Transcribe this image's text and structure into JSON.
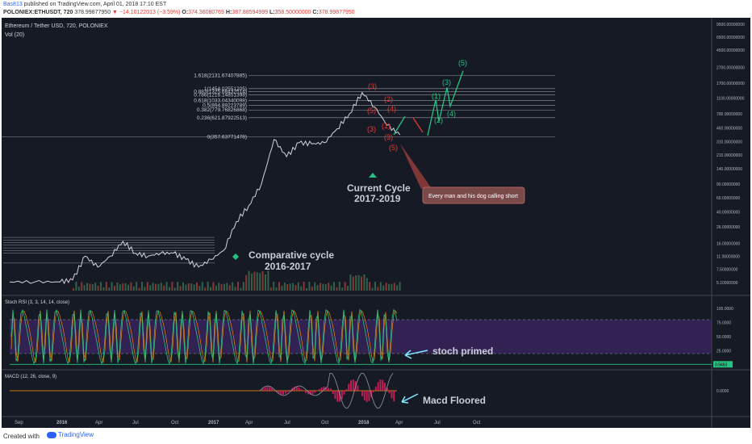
{
  "header": {
    "author": "Bas813",
    "published": "published on TradingView.com, April 01, 2018 17:10 EST",
    "symbol": "POLONIEX:ETHUSDT, 720",
    "last_price": "378.99877950",
    "change": "▼ −14.10122013 (−3.59%)",
    "o_label": "O:",
    "o_value": "374.36080769",
    "h_label": "H:",
    "h_value": "387.88594999",
    "l_label": "L:",
    "l_value": "358.50000000",
    "c_label": "C:",
    "c_value": "378.99877950"
  },
  "footer": {
    "created_with": "Created with",
    "brand": "TradingView"
  },
  "colors": {
    "background": "#161a25",
    "green": "#26c281",
    "red": "#e53935",
    "purple": "#4a2a7a",
    "annotation": "#80e8ff"
  },
  "chart_data": [
    {
      "type": "line",
      "title": "Ethereum / Tether USD, 720, POLONIEX",
      "indicator": "Vol (20)",
      "y_scale": "log",
      "y_ticks": [
        "9500.00000000",
        "6500.00000000",
        "4500.00000000",
        "2700.00000000",
        "1700.00000000",
        "1100.00000000",
        "700.00000000",
        "460.00000000",
        "310.00000000",
        "210.00000000",
        "140.00000000",
        "90.00000000",
        "60.00000000",
        "40.00000000",
        "26.00000000",
        "16.00000000",
        "11.00000000",
        "7.50000000",
        "5.10000000"
      ],
      "fib_levels": [
        {
          "ratio": 1.618,
          "label": "1.618(2131.67407885)",
          "value": 2131.674
        },
        {
          "ratio": 1,
          "label": "1(1454.02551205)",
          "value": 1454.026
        },
        {
          "ratio": 0.883,
          "label": "0.883(1325.68432514)",
          "value": 1325.684
        },
        {
          "ratio": 0.786,
          "label": "0.786(1216.14851398)",
          "value": 1216.149
        },
        {
          "ratio": 0.618,
          "label": "0.618(1033.04340098)",
          "value": 1033.043
        },
        {
          "ratio": 0.5,
          "label": "0.5(894.89223789)",
          "value": 894.892
        },
        {
          "ratio": 0.382,
          "label": "0.382(779.76826868)",
          "value": 779.768
        },
        {
          "ratio": 0.236,
          "label": "0.236(621.87922513)",
          "value": 621.879
        },
        {
          "ratio": 0,
          "label": "0(357.63771478)",
          "value": 357.638
        }
      ],
      "price_series": [
        [
          "2015-09",
          1.0
        ],
        [
          "2015-11",
          0.95
        ],
        [
          "2016-01",
          1.1
        ],
        [
          "2016-02",
          5.5
        ],
        [
          "2016-03",
          11
        ],
        [
          "2016-04",
          8
        ],
        [
          "2016-05",
          11
        ],
        [
          "2016-06",
          17
        ],
        [
          "2016-07",
          12
        ],
        [
          "2016-08",
          11
        ],
        [
          "2016-09",
          12
        ],
        [
          "2016-10",
          12
        ],
        [
          "2016-11",
          10
        ],
        [
          "2016-12",
          8
        ],
        [
          "2017-01",
          10
        ],
        [
          "2017-02",
          13
        ],
        [
          "2017-03",
          30
        ],
        [
          "2017-04",
          48
        ],
        [
          "2017-05",
          90
        ],
        [
          "2017-06",
          330
        ],
        [
          "2017-07",
          200
        ],
        [
          "2017-08",
          300
        ],
        [
          "2017-09",
          290
        ],
        [
          "2017-10",
          300
        ],
        [
          "2017-11",
          450
        ],
        [
          "2017-12",
          700
        ],
        [
          "2018-01",
          1300
        ],
        [
          "2018-02",
          850
        ],
        [
          "2018-03",
          500
        ],
        [
          "2018-04",
          379
        ]
      ],
      "projection": [
        {
          "label": "(1)",
          "value": 1050
        },
        {
          "label": "(2)",
          "value": 560
        },
        {
          "label": "(3)",
          "value": 1500
        },
        {
          "label": "(4)",
          "value": 870
        },
        {
          "label": "(5)",
          "value": 2450
        }
      ],
      "red_wave_labels": [
        "(3)",
        "(2)",
        "(4)",
        "(5)",
        "(3)",
        "(1)",
        "(3)",
        "(5)"
      ],
      "annotations": [
        {
          "text": "Comparative cycle",
          "text2": "2016-2017"
        },
        {
          "text": "Current Cycle",
          "text2": "2017-2019"
        },
        {
          "text": "Every man and his dog calling short"
        }
      ]
    },
    {
      "type": "line",
      "title": "Stoch RSI (3, 3, 14, 14, close)",
      "y_ticks": [
        "100.0000",
        "75.0000",
        "50.0000",
        "25.0000",
        "0.0000"
      ],
      "bands": [
        80,
        20
      ],
      "current_label": "0.9463",
      "annotation": "stoch primed"
    },
    {
      "type": "line",
      "title": "MACD (12, 26, close, 9)",
      "y_ticks": [
        "0.0000"
      ],
      "annotation": "Macd Floored"
    }
  ],
  "x_ticks": [
    "Sep",
    "2016",
    "Apr",
    "Jul",
    "Oct",
    "2017",
    "Apr",
    "Jul",
    "Oct",
    "2018",
    "Apr",
    "Jul",
    "Oct"
  ]
}
